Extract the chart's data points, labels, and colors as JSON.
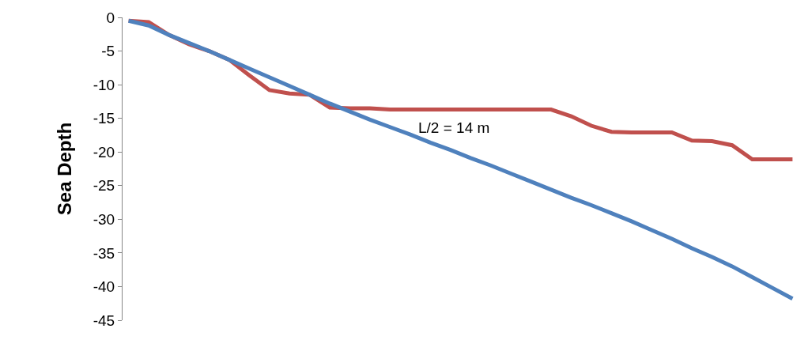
{
  "chart_data": {
    "type": "line",
    "ylabel": "Sea Depth",
    "categories": [
      null,
      null,
      null,
      null,
      null,
      null,
      null,
      null,
      null,
      null,
      null,
      null,
      null,
      null,
      null,
      null,
      null,
      null,
      null,
      null,
      null,
      null,
      null,
      null,
      null,
      null,
      null,
      null,
      null,
      null,
      null,
      null,
      null,
      null
    ],
    "series": [
      {
        "color": "#c0504d",
        "values": [
          -0.5,
          -0.7,
          -2.6,
          -4.0,
          -5.0,
          -6.3,
          -8.6,
          -10.8,
          -11.3,
          -11.5,
          -13.4,
          -13.5,
          -13.5,
          -13.7,
          -13.7,
          -13.7,
          -13.7,
          -13.7,
          -13.7,
          -13.7,
          -13.7,
          -13.7,
          -14.7,
          -16.1,
          -17.0,
          -17.1,
          -17.1,
          -17.1,
          -18.3,
          -18.4,
          -19.0,
          -21.1,
          -21.1,
          -21.1
        ]
      },
      {
        "color": "#4f81bd",
        "values": [
          -0.5,
          -1.2,
          -2.6,
          -3.8,
          -5.0,
          -6.3,
          -7.6,
          -8.9,
          -10.2,
          -11.5,
          -12.8,
          -14.0,
          -15.2,
          -16.3,
          -17.4,
          -18.6,
          -19.7,
          -20.9,
          -22.0,
          -23.2,
          -24.4,
          -25.6,
          -26.8,
          -27.9,
          -29.1,
          -30.3,
          -31.6,
          -32.9,
          -34.3,
          -35.6,
          -37.0,
          -38.6,
          -40.2,
          -41.8
        ]
      }
    ],
    "annotations": [
      "L/2 = 14 m"
    ],
    "ylim": [
      -45,
      0
    ],
    "yticks": [
      0,
      -5,
      -10,
      -15,
      -20,
      -25,
      -30,
      -35,
      -40,
      -45
    ],
    "marker": "none",
    "line_style": "solid"
  }
}
